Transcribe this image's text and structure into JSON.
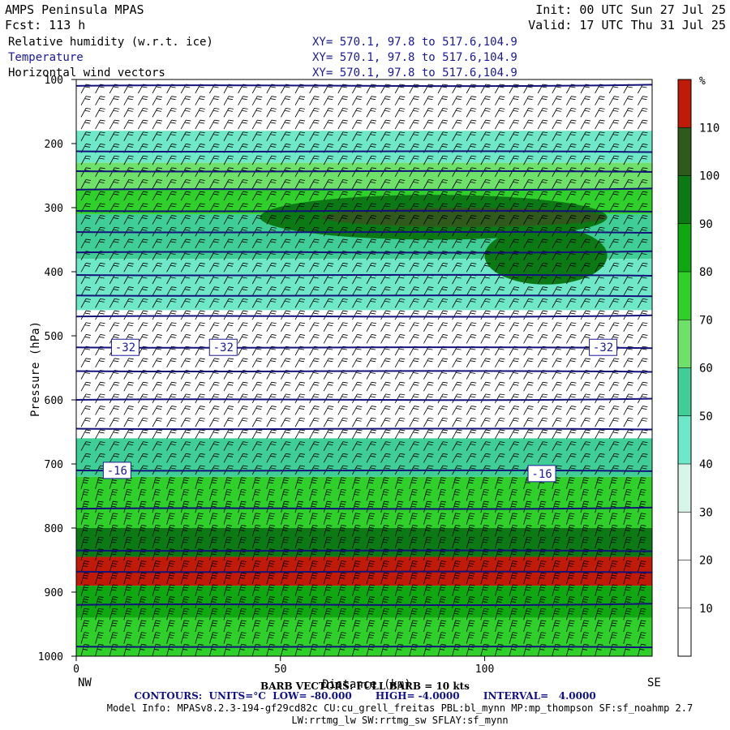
{
  "header": {
    "title": "AMPS Peninsula MPAS",
    "forecast": "Fcst:  113 h",
    "init": "Init: 00 UTC Sun 27 Jul 25",
    "valid": "Valid: 17 UTC Thu 31 Jul 25",
    "fields": [
      {
        "label": "Relative humidity (w.r.t. ice)",
        "xy": "XY= 570.1, 97.8 to 517.6,104.9"
      },
      {
        "label": "Temperature",
        "xy": "XY= 570.1, 97.8 to 517.6,104.9"
      },
      {
        "label": "Horizontal wind vectors",
        "xy": "XY= 570.1, 97.8 to 517.6,104.9"
      }
    ]
  },
  "axes": {
    "ylabel": "Pressure (hPa)",
    "xlabel": "Distance (km)",
    "left_end": "NW",
    "right_end": "SE"
  },
  "footer": {
    "barb_note": "BARB VECTORS: FULL BARB = 10 kts",
    "contours": "CONTOURS:  UNITS=°C  LOW= -80.000       HIGH= -4.0000       INTERVAL=   4.0000",
    "model_info": "Model Info: MPASv8.2.3-194-gf29cd82c CU:cu_grell_freitas PBL:bl_mynn MP:mp_thompson SF:sf_noahmp 2.7",
    "model_info2": "LW:rrtmg_lw SW:rrtmg_sw SFLAY:sf_mynn"
  },
  "chart_data": {
    "type": "heatmap",
    "x_range": [
      0,
      141
    ],
    "x_ticks": [
      0,
      50,
      100
    ],
    "y_range": [
      1000,
      100
    ],
    "y_ticks": [
      100,
      200,
      300,
      400,
      500,
      600,
      700,
      800,
      900,
      1000
    ],
    "colorbar": {
      "unit": "%",
      "levels": [
        0,
        10,
        20,
        30,
        40,
        50,
        60,
        70,
        80,
        90,
        100,
        110
      ],
      "tick_labels": [
        "10",
        "20",
        "30",
        "40",
        "50",
        "60",
        "70",
        "80",
        "90",
        "100",
        "110"
      ],
      "colors": [
        "#ffffff",
        "#ffffff",
        "#ffffff",
        "#d8f5ea",
        "#6ee8c8",
        "#3fcf96",
        "#6fe06a",
        "#2fd02a",
        "#10a810",
        "#0b7a15",
        "#2f5a1c",
        "#c01a08"
      ]
    },
    "rh_layers": [
      {
        "p_top": 100,
        "p_bot": 180,
        "rh": 10
      },
      {
        "p_top": 180,
        "p_bot": 230,
        "rh": 40
      },
      {
        "p_top": 230,
        "p_bot": 270,
        "rh": 60
      },
      {
        "p_top": 270,
        "p_bot": 310,
        "rh": 70
      },
      {
        "p_top": 310,
        "p_bot": 380,
        "rh": 50
      },
      {
        "p_top": 380,
        "p_bot": 460,
        "rh": 40
      },
      {
        "p_top": 460,
        "p_bot": 660,
        "rh": 20
      },
      {
        "p_top": 660,
        "p_bot": 720,
        "rh": 50
      },
      {
        "p_top": 720,
        "p_bot": 800,
        "rh": 75
      },
      {
        "p_top": 800,
        "p_bot": 845,
        "rh": 90
      },
      {
        "p_top": 845,
        "p_bot": 890,
        "rh": 110
      },
      {
        "p_top": 890,
        "p_bot": 940,
        "rh": 85
      },
      {
        "p_top": 940,
        "p_bot": 1000,
        "rh": 70
      }
    ],
    "rh_blobs": [
      {
        "x0": 45,
        "x1": 130,
        "p_top": 280,
        "p_bot": 350,
        "rh": 90
      },
      {
        "x0": 100,
        "x1": 130,
        "p_top": 330,
        "p_bot": 420,
        "rh": 90
      },
      {
        "x0": 60,
        "x1": 130,
        "p_top": 300,
        "p_bot": 330,
        "rh": 100
      }
    ],
    "temperature_contours": [
      {
        "p": 110,
        "label": ""
      },
      {
        "p": 212,
        "label": ""
      },
      {
        "p": 243,
        "label": ""
      },
      {
        "p": 272,
        "label": ""
      },
      {
        "p": 305,
        "label": ""
      },
      {
        "p": 338,
        "label": ""
      },
      {
        "p": 370,
        "label": ""
      },
      {
        "p": 405,
        "label": ""
      },
      {
        "p": 437,
        "label": ""
      },
      {
        "p": 470,
        "label": ""
      },
      {
        "p": 518,
        "label": "-32"
      },
      {
        "p": 555,
        "label": ""
      },
      {
        "p": 600,
        "label": ""
      },
      {
        "p": 645,
        "label": ""
      },
      {
        "p": 710,
        "label": "-16"
      },
      {
        "p": 770,
        "label": ""
      },
      {
        "p": 835,
        "label": ""
      },
      {
        "p": 868,
        "label": ""
      },
      {
        "p": 920,
        "label": ""
      },
      {
        "p": 985,
        "label": ""
      }
    ],
    "contour_label_positions": [
      {
        "label": "-32",
        "x": 12,
        "p": 518
      },
      {
        "label": "-32",
        "x": 36,
        "p": 518
      },
      {
        "label": "-32",
        "x": 129,
        "p": 518
      },
      {
        "label": "-16",
        "x": 10,
        "p": 710
      },
      {
        "label": "-16",
        "x": 114,
        "p": 715
      }
    ]
  }
}
